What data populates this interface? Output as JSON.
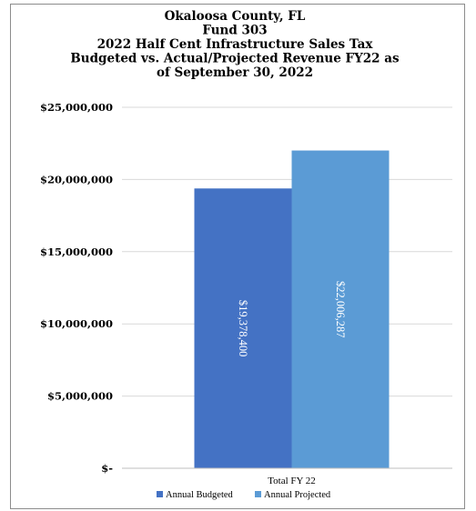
{
  "chart_data": {
    "type": "bar",
    "title": [
      "Okaloosa County, FL",
      "Fund 303",
      "2022 Half Cent Infrastructure Sales Tax",
      "Budgeted vs. Actual/Projected Revenue FY22 as",
      "of September 30, 2022"
    ],
    "categories": [
      "Total FY 22"
    ],
    "series": [
      {
        "name": "Annual Budgeted",
        "values": [
          19378400
        ],
        "labels": [
          "$19,378,400"
        ],
        "color": "#4472c4"
      },
      {
        "name": "Annual Projected",
        "values": [
          22006287
        ],
        "labels": [
          "$22,006,287"
        ],
        "color": "#5b9bd5"
      }
    ],
    "ylim": [
      0,
      25000000
    ],
    "yticks": [
      {
        "value": 0,
        "label": "$-"
      },
      {
        "value": 5000000,
        "label": "$5,000,000"
      },
      {
        "value": 10000000,
        "label": "$10,000,000"
      },
      {
        "value": 15000000,
        "label": "$15,000,000"
      },
      {
        "value": 20000000,
        "label": "$20,000,000"
      },
      {
        "value": 25000000,
        "label": "$25,000,000"
      }
    ],
    "grid": true,
    "legend_position": "bottom",
    "gridline_color": "#d9d9d9"
  }
}
